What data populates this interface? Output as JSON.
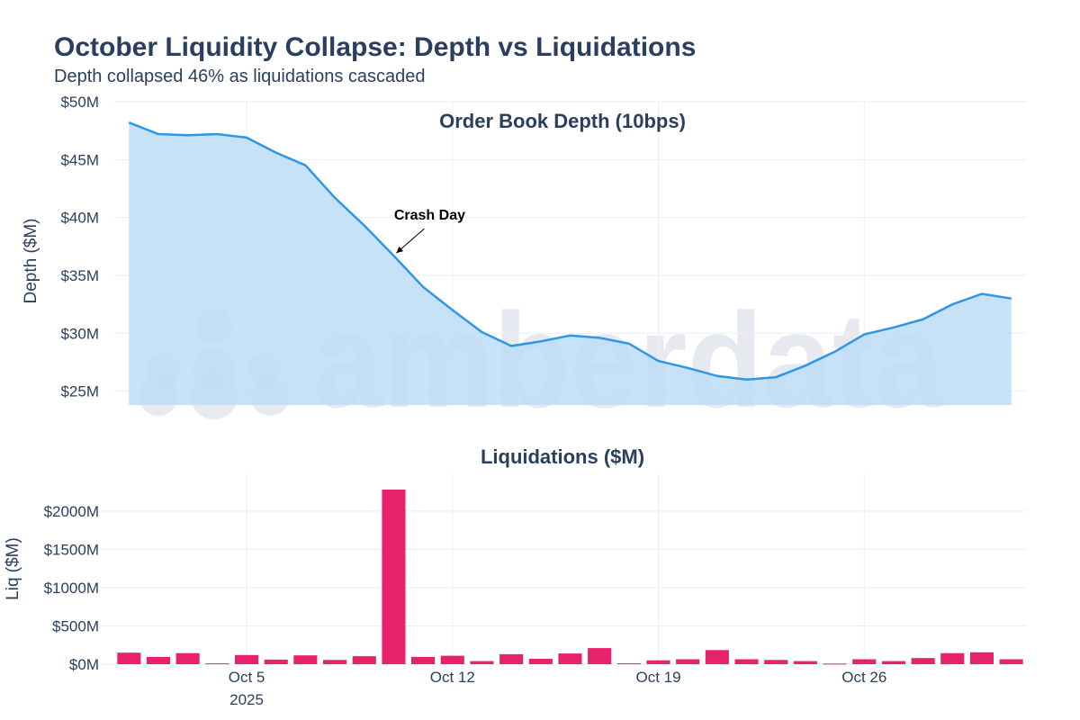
{
  "title": "October Liquidity Collapse: Depth vs Liquidations",
  "subtitle": "Depth collapsed 46% as liquidations cascaded",
  "watermark": "amberdata",
  "colors": {
    "depth_line": "#2e97e4",
    "depth_fill": "#bddcf6",
    "bar": "#e8226a",
    "text": "#2a3f5f",
    "grid": "#ebeef3"
  },
  "chart_data": [
    {
      "type": "area",
      "title": "Order Book Depth (10bps)",
      "ylabel": "Depth ($M)",
      "xlabel": "",
      "x_start_day": 1,
      "x": [
        1,
        2,
        3,
        4,
        5,
        6,
        7,
        8,
        9,
        10,
        11,
        12,
        13,
        14,
        15,
        16,
        17,
        18,
        19,
        20,
        21,
        22,
        23,
        24,
        25,
        26,
        27,
        28,
        29,
        30,
        31
      ],
      "values": [
        48.2,
        47.2,
        47.1,
        47.2,
        46.9,
        45.6,
        44.5,
        41.7,
        39.3,
        36.7,
        34.0,
        32.0,
        30.1,
        28.9,
        29.3,
        29.8,
        29.6,
        29.1,
        27.6,
        27.0,
        26.3,
        26.0,
        26.2,
        27.2,
        28.4,
        29.9,
        30.5,
        31.2,
        32.5,
        33.4,
        33.0
      ],
      "ylim": [
        23.8,
        50
      ],
      "yticks": [
        25,
        30,
        35,
        40,
        45,
        50
      ],
      "ytick_labels": [
        "$25M",
        "$30M",
        "$35M",
        "$40M",
        "$45M",
        "$50M"
      ],
      "annotation": {
        "text": "Crash Day",
        "day": 10
      }
    },
    {
      "type": "bar",
      "title": "Liquidations ($M)",
      "ylabel": "Liq ($M)",
      "xlabel": "",
      "x": [
        1,
        2,
        3,
        4,
        5,
        6,
        7,
        8,
        9,
        10,
        11,
        12,
        13,
        14,
        15,
        16,
        17,
        18,
        19,
        20,
        21,
        22,
        23,
        24,
        25,
        26,
        27,
        28,
        29,
        30,
        31
      ],
      "values": [
        150,
        95,
        145,
        10,
        120,
        60,
        115,
        55,
        105,
        2280,
        95,
        110,
        40,
        130,
        70,
        140,
        210,
        10,
        50,
        65,
        185,
        65,
        55,
        40,
        8,
        65,
        40,
        80,
        145,
        155,
        65
      ],
      "ylim": [
        0,
        2480
      ],
      "yticks": [
        0,
        500,
        1000,
        1500,
        2000
      ],
      "ytick_labels": [
        "$0M",
        "$500M",
        "$1000M",
        "$1500M",
        "$2000M"
      ],
      "xticks": [
        5,
        12,
        19,
        26
      ],
      "xtick_labels": [
        "Oct 5",
        "Oct 12",
        "Oct 19",
        "Oct 26"
      ],
      "year_label": "2025"
    }
  ]
}
